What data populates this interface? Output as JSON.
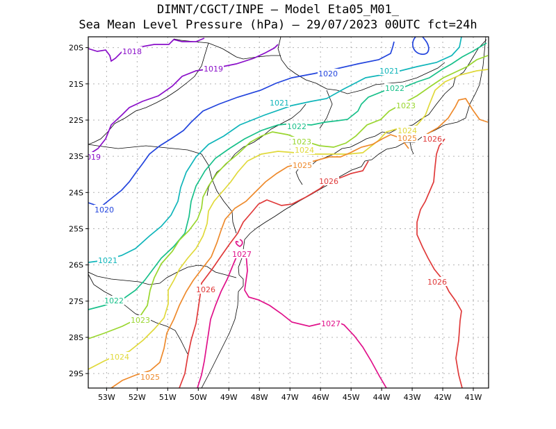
{
  "title": {
    "line1": "DIMNT/CGCT/INPE –  Model Eta05_M01_",
    "line2": "Sea Mean Level Pressure (hPa) – 29/07/2023 00UTC fct=24h"
  },
  "map": {
    "lon_range": [
      -53.6,
      -40.5
    ],
    "lat_range": [
      -29.4,
      -19.7
    ],
    "lon_ticks": [
      "53W",
      "52W",
      "51W",
      "50W",
      "49W",
      "48W",
      "47W",
      "46W",
      "45W",
      "44W",
      "43W",
      "42W",
      "41W"
    ],
    "lat_ticks": [
      "20S",
      "21S",
      "22S",
      "23S",
      "24S",
      "25S",
      "26S",
      "27S",
      "28S",
      "29S"
    ]
  },
  "contours": [
    {
      "level": "1018",
      "color": "#8a0fc9"
    },
    {
      "level": "1019",
      "color": "#8a0fc9"
    },
    {
      "level": "1020",
      "color": "#2244dd"
    },
    {
      "level": "1021",
      "color": "#0fb5ba"
    },
    {
      "level": "1022",
      "color": "#18c08a"
    },
    {
      "level": "1023",
      "color": "#99d62e"
    },
    {
      "level": "1024",
      "color": "#e0d93a"
    },
    {
      "level": "1025",
      "color": "#ee8a2c"
    },
    {
      "level": "1026",
      "color": "#e03a3a"
    },
    {
      "level": "1027",
      "color": "#e0108a"
    }
  ]
}
